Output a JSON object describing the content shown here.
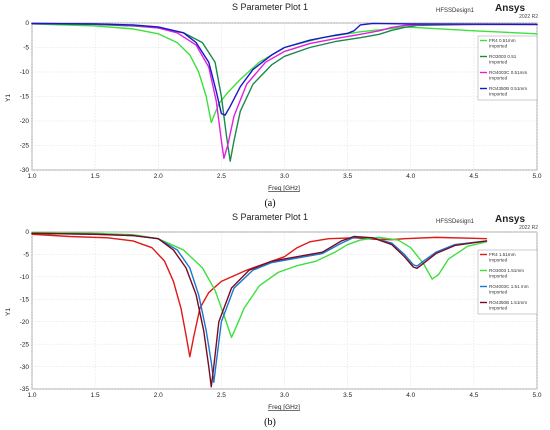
{
  "chart_data": [
    {
      "type": "line",
      "title": "S Parameter Plot 1",
      "brand": "HFSSDesign1",
      "vendor": "Ansys",
      "version": "2022 R2",
      "xlabel": "Freq [GHz]",
      "ylabel": "Y1",
      "xlim": [
        1.0,
        5.0
      ],
      "ylim": [
        -30,
        0
      ],
      "xticks": [
        "1.0",
        "1.5",
        "2.0",
        "2.5",
        "3.0",
        "3.5",
        "4.0",
        "4.5",
        "5.0"
      ],
      "yticks": [
        "0",
        "-5",
        "-10",
        "-15",
        "-20",
        "-25",
        "-30"
      ],
      "grid": true,
      "legend_position": "right",
      "caption": "(a)",
      "series": [
        {
          "name": "FR4 0.51mm",
          "sub": "Imported",
          "color": "#3ee03e",
          "points": [
            [
              1.0,
              -0.2
            ],
            [
              1.5,
              -0.6
            ],
            [
              1.8,
              -1.2
            ],
            [
              2.0,
              -2.2
            ],
            [
              2.15,
              -4.0
            ],
            [
              2.25,
              -6.5
            ],
            [
              2.32,
              -10.0
            ],
            [
              2.38,
              -15.0
            ],
            [
              2.42,
              -20.3
            ],
            [
              2.44,
              -19.0
            ],
            [
              2.48,
              -16.5
            ],
            [
              2.55,
              -14.2
            ],
            [
              2.65,
              -11.5
            ],
            [
              2.8,
              -8.0
            ],
            [
              3.0,
              -5.0
            ],
            [
              3.3,
              -3.0
            ],
            [
              3.6,
              -1.8
            ],
            [
              3.75,
              -1.4
            ],
            [
              3.85,
              -1.1
            ],
            [
              3.95,
              -0.8
            ],
            [
              4.1,
              -1.0
            ],
            [
              4.5,
              -1.6
            ],
            [
              5.0,
              -2.2
            ]
          ]
        },
        {
          "name": "RO3003 0.51",
          "sub": "Imported",
          "color": "#1a8a4a",
          "points": [
            [
              1.0,
              -0.1
            ],
            [
              1.5,
              -0.3
            ],
            [
              1.8,
              -0.6
            ],
            [
              2.0,
              -1.0
            ],
            [
              2.2,
              -2.0
            ],
            [
              2.35,
              -4.0
            ],
            [
              2.45,
              -8.0
            ],
            [
              2.5,
              -15.0
            ],
            [
              2.54,
              -23.0
            ],
            [
              2.57,
              -28.2
            ],
            [
              2.6,
              -24.0
            ],
            [
              2.65,
              -18.0
            ],
            [
              2.75,
              -12.5
            ],
            [
              2.9,
              -8.5
            ],
            [
              3.0,
              -6.8
            ],
            [
              3.2,
              -5.0
            ],
            [
              3.4,
              -3.8
            ],
            [
              3.6,
              -3.0
            ],
            [
              3.75,
              -2.3
            ],
            [
              3.85,
              -1.5
            ],
            [
              3.95,
              -0.9
            ],
            [
              4.05,
              -0.5
            ],
            [
              4.5,
              -0.3
            ],
            [
              5.0,
              -0.3
            ]
          ]
        },
        {
          "name": "RO4003C 0.51mm",
          "sub": "Imported",
          "color": "#e020e0",
          "points": [
            [
              1.0,
              -0.1
            ],
            [
              1.5,
              -0.2
            ],
            [
              1.8,
              -0.5
            ],
            [
              2.0,
              -1.0
            ],
            [
              2.15,
              -2.0
            ],
            [
              2.3,
              -4.5
            ],
            [
              2.4,
              -9.0
            ],
            [
              2.46,
              -16.0
            ],
            [
              2.5,
              -24.0
            ],
            [
              2.52,
              -27.6
            ],
            [
              2.55,
              -25.0
            ],
            [
              2.6,
              -19.0
            ],
            [
              2.7,
              -12.5
            ],
            [
              2.85,
              -8.0
            ],
            [
              3.0,
              -5.8
            ],
            [
              3.2,
              -4.2
            ],
            [
              3.4,
              -3.2
            ],
            [
              3.6,
              -2.3
            ],
            [
              3.75,
              -1.6
            ],
            [
              3.85,
              -0.9
            ],
            [
              3.95,
              -0.5
            ],
            [
              4.1,
              -0.3
            ],
            [
              5.0,
              -0.3
            ]
          ]
        },
        {
          "name": "RO4350B 0.51mm",
          "sub": "Imported",
          "color": "#1818c8",
          "points": [
            [
              1.0,
              -0.1
            ],
            [
              1.5,
              -0.2
            ],
            [
              1.8,
              -0.4
            ],
            [
              2.0,
              -0.8
            ],
            [
              2.2,
              -2.0
            ],
            [
              2.3,
              -4.0
            ],
            [
              2.4,
              -8.0
            ],
            [
              2.46,
              -14.0
            ],
            [
              2.5,
              -18.5
            ],
            [
              2.53,
              -18.8
            ],
            [
              2.57,
              -17.0
            ],
            [
              2.65,
              -13.0
            ],
            [
              2.75,
              -9.5
            ],
            [
              2.9,
              -6.5
            ],
            [
              3.0,
              -5.0
            ],
            [
              3.2,
              -3.5
            ],
            [
              3.4,
              -2.5
            ],
            [
              3.5,
              -2.1
            ],
            [
              3.55,
              -1.6
            ],
            [
              3.6,
              -0.4
            ],
            [
              3.7,
              -0.1
            ],
            [
              4.0,
              -0.2
            ],
            [
              5.0,
              -0.3
            ]
          ]
        }
      ]
    },
    {
      "type": "line",
      "title": "S Parameter Plot 1",
      "brand": "HFSSDesign1",
      "vendor": "Ansys",
      "version": "2022 R2",
      "xlabel": "Freq [GHz]",
      "ylabel": "Y1",
      "xlim": [
        1.0,
        5.0
      ],
      "ylim": [
        -35,
        0
      ],
      "xticks": [
        "1.0",
        "1.5",
        "2.0",
        "2.5",
        "3.0",
        "3.5",
        "4.0",
        "4.5",
        "5.0"
      ],
      "yticks": [
        "0",
        "-5",
        "-10",
        "-15",
        "-20",
        "-25",
        "-30",
        "-35"
      ],
      "grid": true,
      "legend_position": "right",
      "caption": "(b)",
      "series": [
        {
          "name": "FR4 1.51mm",
          "sub": "Imported",
          "color": "#e01818",
          "points": [
            [
              1.0,
              -0.5
            ],
            [
              1.3,
              -1.0
            ],
            [
              1.6,
              -1.3
            ],
            [
              1.8,
              -2.0
            ],
            [
              1.95,
              -3.5
            ],
            [
              2.05,
              -6.5
            ],
            [
              2.12,
              -11.0
            ],
            [
              2.18,
              -17.0
            ],
            [
              2.22,
              -23.0
            ],
            [
              2.25,
              -27.8
            ],
            [
              2.28,
              -23.5
            ],
            [
              2.33,
              -17.0
            ],
            [
              2.4,
              -13.5
            ],
            [
              2.5,
              -11.0
            ],
            [
              2.7,
              -8.5
            ],
            [
              2.9,
              -6.5
            ],
            [
              3.0,
              -5.5
            ],
            [
              3.1,
              -3.5
            ],
            [
              3.2,
              -2.2
            ],
            [
              3.35,
              -1.5
            ],
            [
              3.55,
              -1.3
            ],
            [
              3.7,
              -1.6
            ],
            [
              3.85,
              -1.7
            ],
            [
              3.95,
              -1.5
            ],
            [
              4.2,
              -1.2
            ],
            [
              4.5,
              -1.4
            ],
            [
              4.6,
              -1.5
            ]
          ]
        },
        {
          "name": "RO3003 1.51mm",
          "sub": "Imported",
          "color": "#3ee03e",
          "points": [
            [
              1.0,
              -0.1
            ],
            [
              1.5,
              -0.3
            ],
            [
              1.8,
              -0.6
            ],
            [
              2.0,
              -1.5
            ],
            [
              2.2,
              -4.0
            ],
            [
              2.35,
              -8.0
            ],
            [
              2.45,
              -13.0
            ],
            [
              2.52,
              -18.5
            ],
            [
              2.58,
              -23.5
            ],
            [
              2.62,
              -21.0
            ],
            [
              2.68,
              -17.0
            ],
            [
              2.8,
              -12.0
            ],
            [
              2.95,
              -9.0
            ],
            [
              3.1,
              -7.5
            ],
            [
              3.25,
              -6.5
            ],
            [
              3.4,
              -4.5
            ],
            [
              3.5,
              -2.8
            ],
            [
              3.6,
              -1.8
            ],
            [
              3.75,
              -1.2
            ],
            [
              3.9,
              -1.8
            ],
            [
              4.0,
              -3.5
            ],
            [
              4.1,
              -7.0
            ],
            [
              4.17,
              -10.5
            ],
            [
              4.22,
              -9.5
            ],
            [
              4.3,
              -6.0
            ],
            [
              4.45,
              -3.2
            ],
            [
              4.6,
              -2.2
            ]
          ]
        },
        {
          "name": "RO4003C 1.51 mm",
          "sub": "Imported",
          "color": "#1a78d0",
          "points": [
            [
              1.0,
              -0.3
            ],
            [
              1.5,
              -0.5
            ],
            [
              1.8,
              -0.8
            ],
            [
              2.0,
              -1.5
            ],
            [
              2.15,
              -4.0
            ],
            [
              2.25,
              -8.0
            ],
            [
              2.32,
              -14.0
            ],
            [
              2.38,
              -22.0
            ],
            [
              2.42,
              -29.0
            ],
            [
              2.44,
              -33.5
            ],
            [
              2.46,
              -29.0
            ],
            [
              2.5,
              -20.0
            ],
            [
              2.6,
              -12.5
            ],
            [
              2.75,
              -8.5
            ],
            [
              2.9,
              -6.8
            ],
            [
              3.1,
              -5.8
            ],
            [
              3.3,
              -4.8
            ],
            [
              3.45,
              -2.5
            ],
            [
              3.55,
              -1.2
            ],
            [
              3.7,
              -1.3
            ],
            [
              3.85,
              -2.5
            ],
            [
              3.95,
              -5.0
            ],
            [
              4.02,
              -7.3
            ],
            [
              4.05,
              -7.6
            ],
            [
              4.1,
              -6.5
            ],
            [
              4.2,
              -4.5
            ],
            [
              4.35,
              -2.8
            ],
            [
              4.6,
              -2.0
            ]
          ]
        },
        {
          "name": "RO4350B 1.51mm",
          "sub": "Imported",
          "color": "#7a0a20",
          "points": [
            [
              1.0,
              -0.3
            ],
            [
              1.5,
              -0.5
            ],
            [
              1.8,
              -0.8
            ],
            [
              2.0,
              -1.5
            ],
            [
              2.12,
              -4.0
            ],
            [
              2.22,
              -8.0
            ],
            [
              2.3,
              -14.0
            ],
            [
              2.36,
              -22.0
            ],
            [
              2.4,
              -30.0
            ],
            [
              2.42,
              -34.5
            ],
            [
              2.44,
              -30.0
            ],
            [
              2.48,
              -20.0
            ],
            [
              2.58,
              -12.5
            ],
            [
              2.72,
              -8.5
            ],
            [
              2.9,
              -6.5
            ],
            [
              3.1,
              -5.5
            ],
            [
              3.3,
              -4.5
            ],
            [
              3.45,
              -2.0
            ],
            [
              3.55,
              -1.0
            ],
            [
              3.7,
              -1.3
            ],
            [
              3.85,
              -2.8
            ],
            [
              3.95,
              -5.5
            ],
            [
              4.02,
              -7.8
            ],
            [
              4.05,
              -8.1
            ],
            [
              4.1,
              -7.0
            ],
            [
              4.2,
              -4.8
            ],
            [
              4.35,
              -3.0
            ],
            [
              4.6,
              -2.0
            ]
          ]
        }
      ]
    }
  ]
}
